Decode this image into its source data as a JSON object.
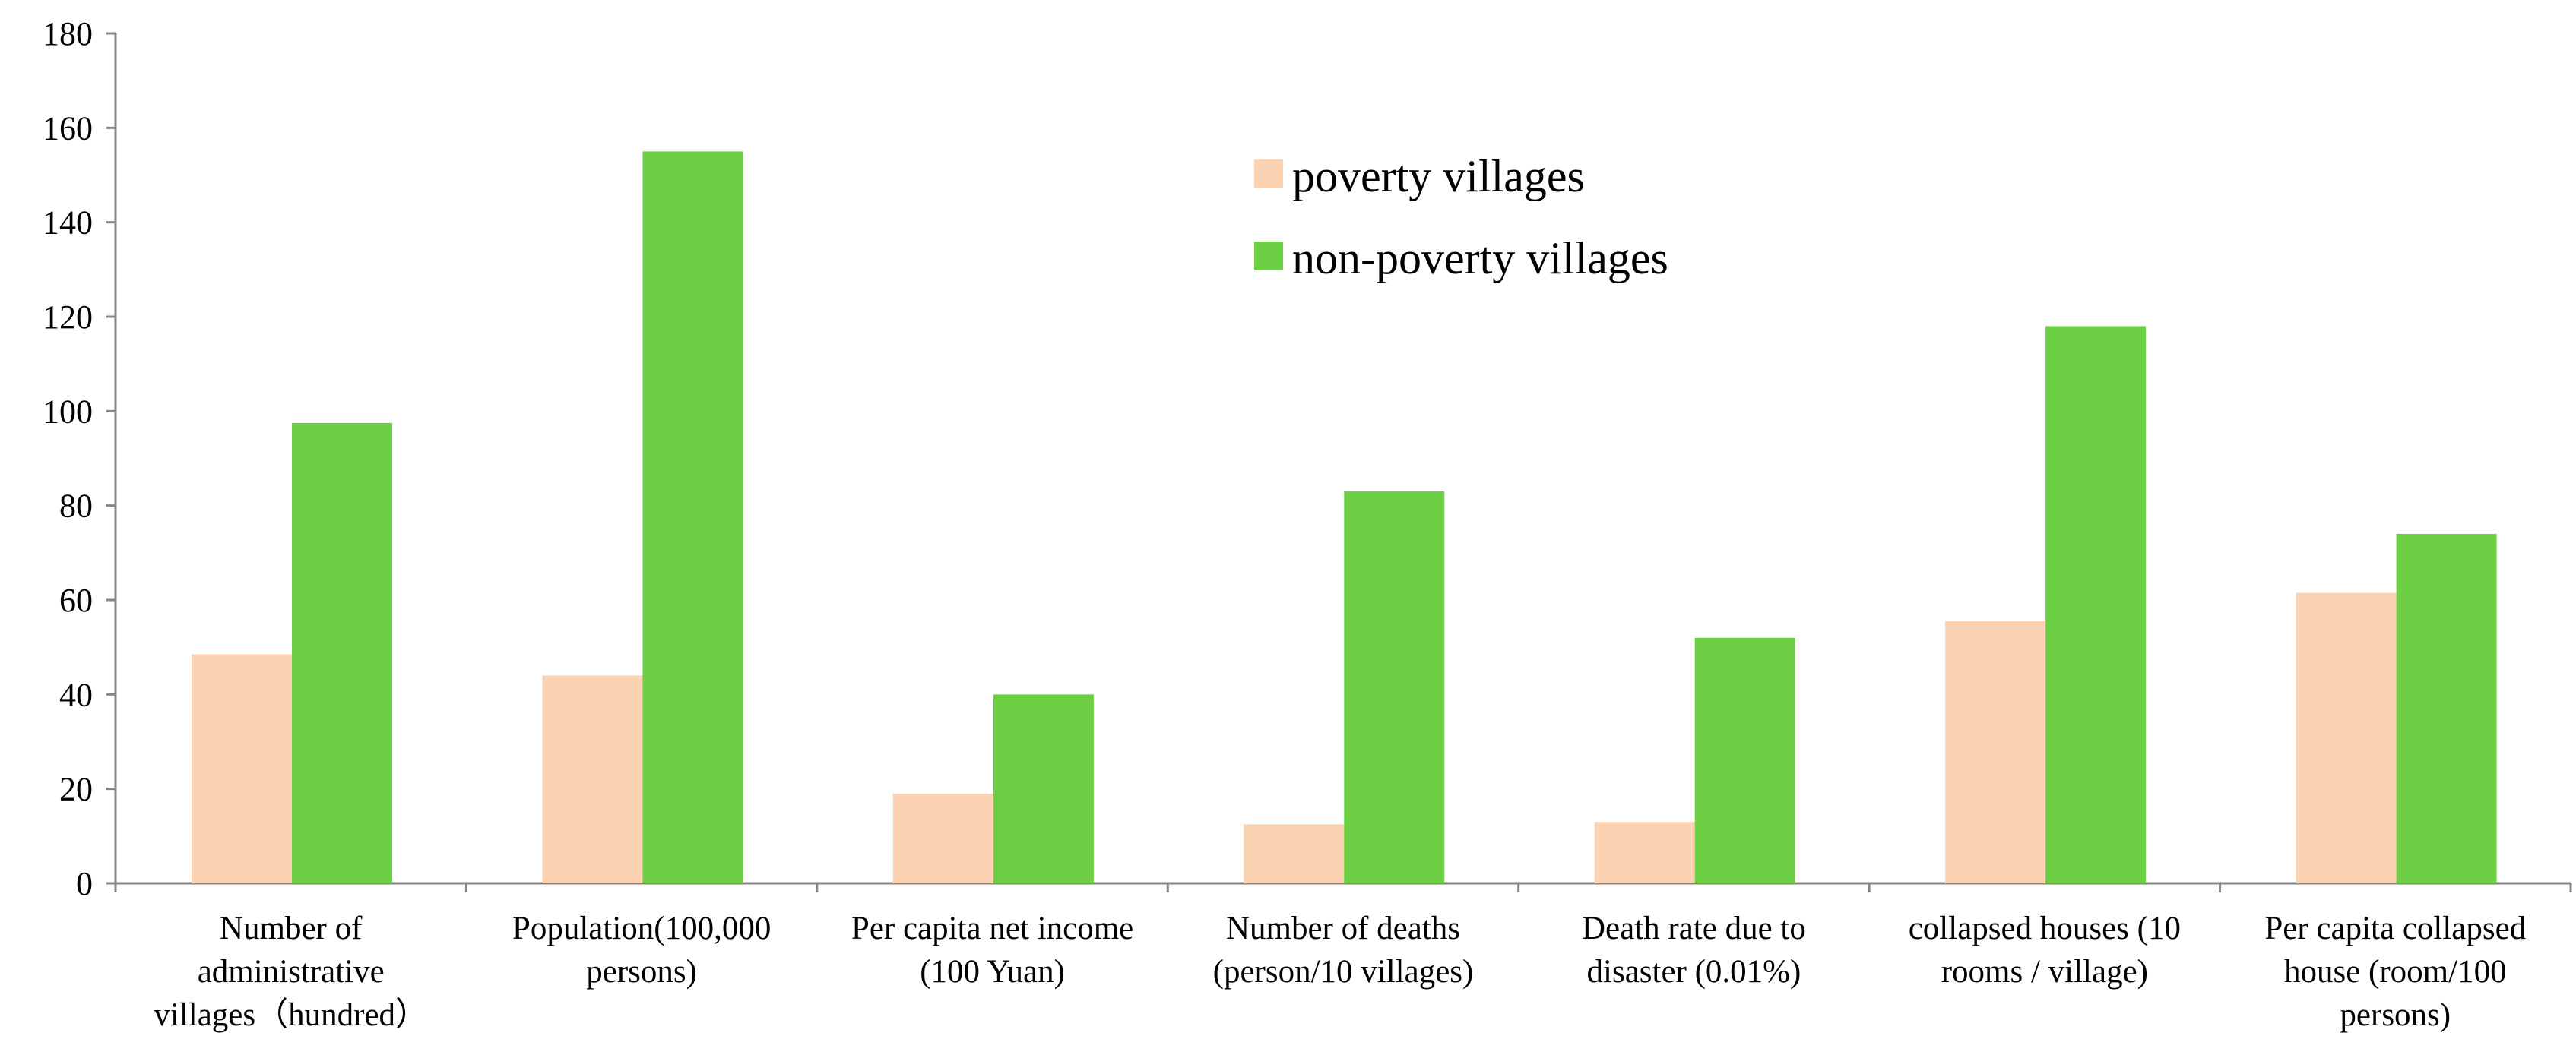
{
  "chart_data": {
    "type": "bar",
    "title": "",
    "xlabel": "",
    "ylabel": "",
    "ylim": [
      0,
      180
    ],
    "yticks": [
      0,
      20,
      40,
      60,
      80,
      100,
      120,
      140,
      160,
      180
    ],
    "grid": false,
    "legend_position": "top-center",
    "categories": [
      [
        "Number of",
        "administrative",
        "villages（hundred）"
      ],
      [
        "Population(100,000",
        "persons)"
      ],
      [
        "Per capita net income",
        "(100 Yuan)"
      ],
      [
        "Number of deaths",
        "(person/10 villages)"
      ],
      [
        "Death rate due to",
        "disaster (0.01%)"
      ],
      [
        "collapsed houses (10",
        "rooms / village)"
      ],
      [
        "Per capita collapsed",
        "house (room/100",
        "persons)"
      ]
    ],
    "series": [
      {
        "name": "poverty villages",
        "color": "#fbd3b2",
        "values": [
          48.5,
          44,
          19,
          12.5,
          13,
          55.5,
          61.5
        ]
      },
      {
        "name": "non-poverty villages",
        "color": "#6ccf44",
        "values": [
          97.5,
          155,
          40,
          83,
          52,
          118,
          74
        ]
      }
    ]
  }
}
